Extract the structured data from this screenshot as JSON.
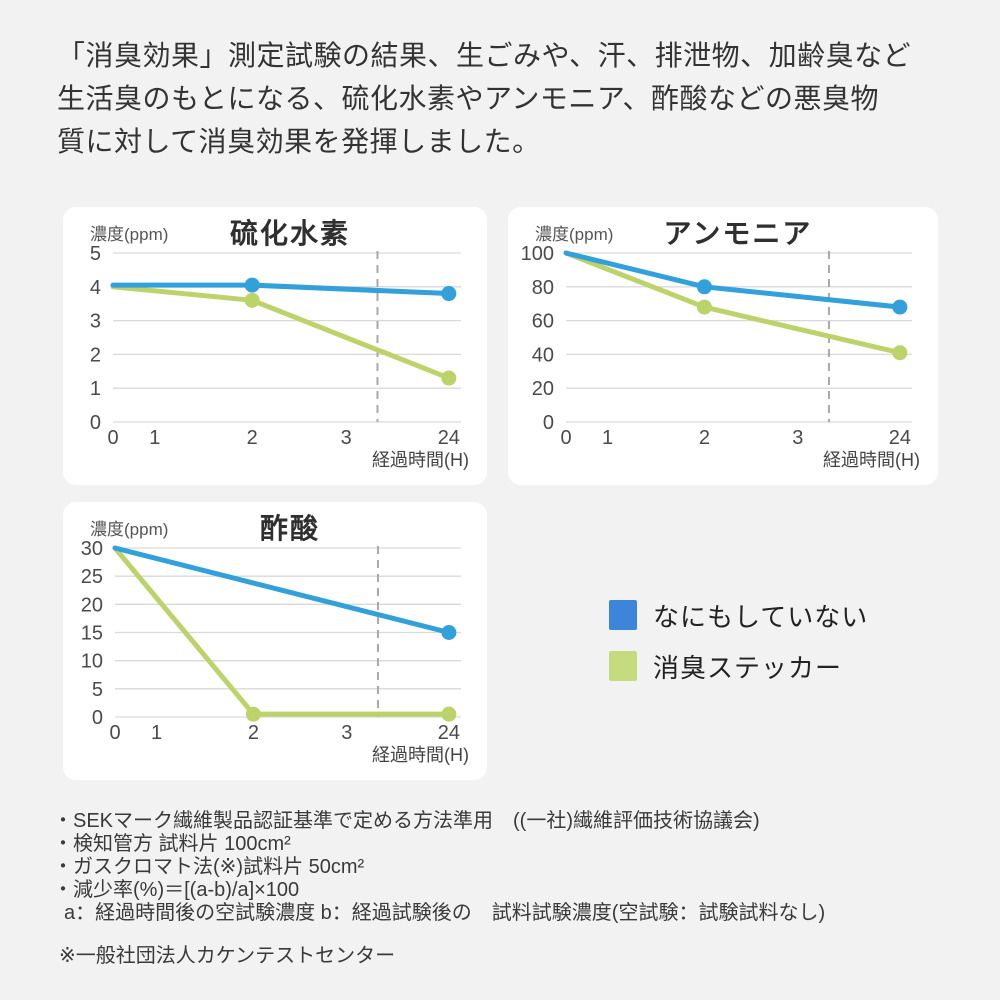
{
  "header": {
    "lines": [
      "「消臭効果」測定試験の結果、生ごみや、汗、排泄物、加齢臭など",
      "生活臭のもとになる、硫化水素やアンモニア、酢酸などの悪臭物",
      "質に対して消臭効果を発揮しました。"
    ]
  },
  "colors": {
    "page_bg": "#f2f2f3",
    "panel_bg": "#ffffff",
    "grid": "#d9d9d9",
    "dashed_guide": "#a9a9a9",
    "tick_text": "#4a4a4a",
    "line_blue": "#31a0db",
    "line_green": "#bcd36a",
    "legend_blue": "#3c85db",
    "legend_green": "#c6da7e"
  },
  "legend": {
    "items": [
      {
        "label": "なにもしていない",
        "color": "#3c85db"
      },
      {
        "label": "消臭ステッカー",
        "color": "#c6da7e"
      }
    ]
  },
  "chart_data": [
    {
      "type": "line",
      "title": "硫化水素",
      "y_unit_label": "濃度(ppm)",
      "x_axis_label": "経過時間(H)",
      "x_ticks": [
        "0",
        "1",
        "2",
        "3",
        "24"
      ],
      "x_tick_positions": [
        0,
        0.12,
        0.4,
        0.67,
        0.965
      ],
      "ylim": [
        0,
        5
      ],
      "yticks": [
        0,
        1,
        2,
        3,
        4,
        5
      ],
      "grid": true,
      "dashed_guide_x_fraction": 0.76,
      "series": [
        {
          "name": "なにもしていない",
          "color": "#31a0db",
          "points": [
            {
              "t": "0",
              "v": 4.05
            },
            {
              "t": "2",
              "v": 4.05,
              "marker": true
            },
            {
              "t": "24",
              "v": 3.8,
              "marker": true
            }
          ]
        },
        {
          "name": "消臭ステッカー",
          "color": "#bcd36a",
          "points": [
            {
              "t": "0",
              "v": 4.0
            },
            {
              "t": "2",
              "v": 3.6,
              "marker": true
            },
            {
              "t": "24",
              "v": 1.3,
              "marker": true
            }
          ]
        }
      ]
    },
    {
      "type": "line",
      "title": "アンモニア",
      "y_unit_label": "濃度(ppm)",
      "x_axis_label": "経過時間(H)",
      "x_ticks": [
        "0",
        "1",
        "2",
        "3",
        "24"
      ],
      "x_tick_positions": [
        0,
        0.12,
        0.4,
        0.67,
        0.965
      ],
      "ylim": [
        0,
        100
      ],
      "yticks": [
        0,
        20,
        40,
        60,
        80,
        100
      ],
      "grid": true,
      "dashed_guide_x_fraction": 0.76,
      "series": [
        {
          "name": "なにもしていない",
          "color": "#31a0db",
          "points": [
            {
              "t": "0",
              "v": 100
            },
            {
              "t": "2",
              "v": 80,
              "marker": true
            },
            {
              "t": "24",
              "v": 68,
              "marker": true
            }
          ]
        },
        {
          "name": "消臭ステッカー",
          "color": "#bcd36a",
          "points": [
            {
              "t": "0",
              "v": 100
            },
            {
              "t": "2",
              "v": 68,
              "marker": true
            },
            {
              "t": "24",
              "v": 41,
              "marker": true
            }
          ]
        }
      ]
    },
    {
      "type": "line",
      "title": "酢酸",
      "y_unit_label": "濃度(ppm)",
      "x_axis_label": "経過時間(H)",
      "x_ticks": [
        "0",
        "1",
        "2",
        "3",
        "24"
      ],
      "x_tick_positions": [
        0,
        0.12,
        0.4,
        0.67,
        0.965
      ],
      "ylim": [
        0,
        30
      ],
      "yticks": [
        0,
        5,
        10,
        15,
        20,
        25,
        30
      ],
      "grid": true,
      "dashed_guide_x_fraction": 0.76,
      "series": [
        {
          "name": "なにもしていない",
          "color": "#31a0db",
          "points": [
            {
              "t": "0",
              "v": 30
            },
            {
              "t": "24",
              "v": 15,
              "marker": true
            }
          ]
        },
        {
          "name": "消臭ステッカー",
          "color": "#bcd36a",
          "points": [
            {
              "t": "0",
              "v": 30
            },
            {
              "t": "2",
              "v": 0.5,
              "marker": true
            },
            {
              "t": "24",
              "v": 0.5,
              "marker": true
            }
          ]
        }
      ]
    }
  ],
  "footnotes": {
    "lines": [
      "・SEKマーク繊維製品認証基準で定める方法準用　((一社)繊維評価技術協議会)",
      "・検知管方 試料片 100cm²",
      "・ガスクロマト法(※)試料片 50cm²",
      "・減少率(%)＝[(a-b)/a]×100",
      "a：経過時間後の空試験濃度  b：経過試験後の　試料試験濃度(空試験：試験試料なし)",
      "※一般社団法人カケンテストセンター"
    ]
  }
}
